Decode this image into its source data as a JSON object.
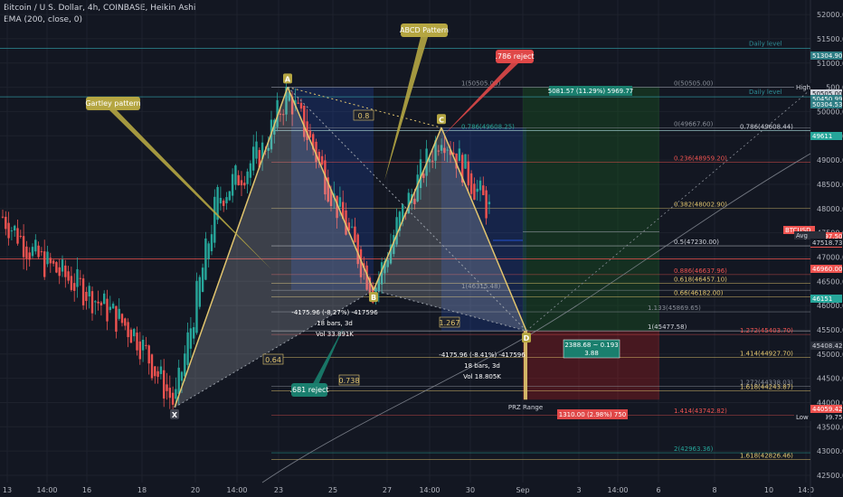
{
  "header": {
    "symbol_line": "Bitcoin / U.S. Dollar, 4h, COINBASE, Heikin Ashi",
    "indicator_line": "EMA (200, close, 0)"
  },
  "chart_data": {
    "type": "candlestick",
    "yticks": [
      "52000.00",
      "51500.00",
      "51000.00",
      "50500.00",
      "50000.00",
      "49500.00",
      "49000.00",
      "48500.00",
      "48000.00",
      "47500.00",
      "47000.00",
      "46500.00",
      "46000.00",
      "45500.00",
      "45000.00",
      "44500.00",
      "44000.00",
      "43500.00",
      "43000.00",
      "42500.00"
    ],
    "xticks": [
      "13",
      "14:00",
      "16",
      "18",
      "20",
      "14:00",
      "23",
      "25",
      "27",
      "14:00",
      "30",
      "Sep",
      "3",
      "14:00",
      "6",
      "8",
      "10",
      "14:0"
    ],
    "ylim": [
      42350,
      52300
    ],
    "colors": {
      "bull": "#26a69a",
      "bear": "#ef5350",
      "fib": "#e2c56e",
      "grid": "#1e222d"
    },
    "price_tags": [
      {
        "text": "51304.90",
        "color": "#2e7d84",
        "text_color": "#ffffff"
      },
      {
        "text": "High",
        "color": "#131722",
        "text_color": "#d1d4dc"
      },
      {
        "text": "50505.00",
        "color": "#d1d4dc",
        "text_color": "#131722"
      },
      {
        "text": "50450.99",
        "color": "#2e7d84",
        "text_color": "#ffffff"
      },
      {
        "text": "50304.53",
        "color": "#2e7d84",
        "text_color": "#ffffff"
      },
      {
        "text": "49611",
        "color": "#26a69a",
        "text_color": "#ffffff"
      },
      {
        "text": "BTCUSD",
        "color": "#ef5350",
        "text_color": "#ffffff"
      },
      {
        "text": "47797.50",
        "color": "#ef5350",
        "text_color": "#ffffff"
      },
      {
        "text": "09:52",
        "color": "#ef5350",
        "text_color": "#ffffff"
      },
      {
        "text": "Avg",
        "color": "#2a2e39",
        "text_color": "#d1d4dc"
      },
      {
        "text": "47518.73",
        "color": "#131722",
        "text_color": "#d1d4dc"
      },
      {
        "text": "46960.00",
        "color": "#ef5350",
        "text_color": "#ffffff"
      },
      {
        "text": "46151",
        "color": "#26a69a",
        "text_color": "#ffffff"
      },
      {
        "text": "45408.42",
        "color": "#2a2e39",
        "text_color": "#d1d4dc"
      },
      {
        "text": "44059.42",
        "color": "#ef5350",
        "text_color": "#ffffff"
      },
      {
        "text": "43899.75",
        "color": "#131722",
        "text_color": "#d1d4dc"
      },
      {
        "text": "Low",
        "color": "#131722",
        "text_color": "#d1d4dc"
      }
    ],
    "horizontal_lines": [
      {
        "label": "Daily level",
        "value": 51304.9
      },
      {
        "label": "Daily level",
        "value": 50304.53
      },
      {
        "label": "",
        "value": 46960.0
      }
    ],
    "fib_levels": [
      {
        "label": "1(50505.00)",
        "value": 50505.0
      },
      {
        "label": "0(50505.00)",
        "value": 50505.0
      },
      {
        "label": "0(49667.60)",
        "value": 49667.6
      },
      {
        "label": "0.786(49608.25)",
        "value": 49608.25
      },
      {
        "label": "0.786(49608.44)",
        "value": 49608.44
      },
      {
        "label": "0.236(48959.20)",
        "value": 48959.2
      },
      {
        "label": "0.382(48002.90)",
        "value": 48002.9
      },
      {
        "label": "0.5(47230.00)",
        "value": 47230.0
      },
      {
        "label": "0.886(46637.96)",
        "value": 46637.96
      },
      {
        "label": "0.618(46457.10)",
        "value": 46457.1
      },
      {
        "label": "1(46315.48)",
        "value": 46315.48
      },
      {
        "label": "0.66(46182.00)",
        "value": 46182.0
      },
      {
        "label": "1.133(45869.65)",
        "value": 45869.65
      },
      {
        "label": "1(45477.58)",
        "value": 45477.58
      },
      {
        "label": "1.272(45403.70)",
        "value": 45403.7
      },
      {
        "label": "1.414(44927.70)",
        "value": 44927.7
      },
      {
        "label": "1.272(44338.03)",
        "value": 44338.03
      },
      {
        "label": "1.618(44243.87)",
        "value": 44243.87
      },
      {
        "label": "1.414(43742.82)",
        "value": 43742.82
      },
      {
        "label": "2(42963.36)",
        "value": 42963.36
      },
      {
        "label": "1.618(42826.46)",
        "value": 42826.46
      }
    ],
    "pattern_points": [
      {
        "label": "X",
        "price": 43899.75
      },
      {
        "label": "A",
        "price": 50505.0
      },
      {
        "label": "B",
        "price": 46315.48
      },
      {
        "label": "C",
        "price": 49667.6
      },
      {
        "label": "D",
        "price": 45477.58
      }
    ],
    "ratios": [
      "0.8",
      "0.64",
      "0.738",
      "1.267"
    ],
    "callouts": [
      {
        "text": "Gartley pattern",
        "color": "#b5a642"
      },
      {
        "text": "ABCD Pattern",
        "color": "#b5a642"
      },
      {
        "text": ".786 reject",
        "color": "#e04848"
      },
      {
        "text": ".681 reject",
        "color": "#1a7f6e"
      }
    ],
    "range_stats": {
      "ab": [
        "-4175.96 (-8.27%) -417596",
        "18 bars, 3d",
        "Vol 33.891K"
      ],
      "cd": [
        "-4175.96 (-8.41%) -417596",
        "18 bars, 3d",
        "Vol 18.805K"
      ]
    },
    "position": {
      "target": "5081.57 (11.29%) 5969.77",
      "stop": "1310.00 (2.98%) 750",
      "ratio": "2388.68 ~ 0.193",
      "ratio_sub": "3.88"
    },
    "prz_label": "PRZ Range"
  }
}
